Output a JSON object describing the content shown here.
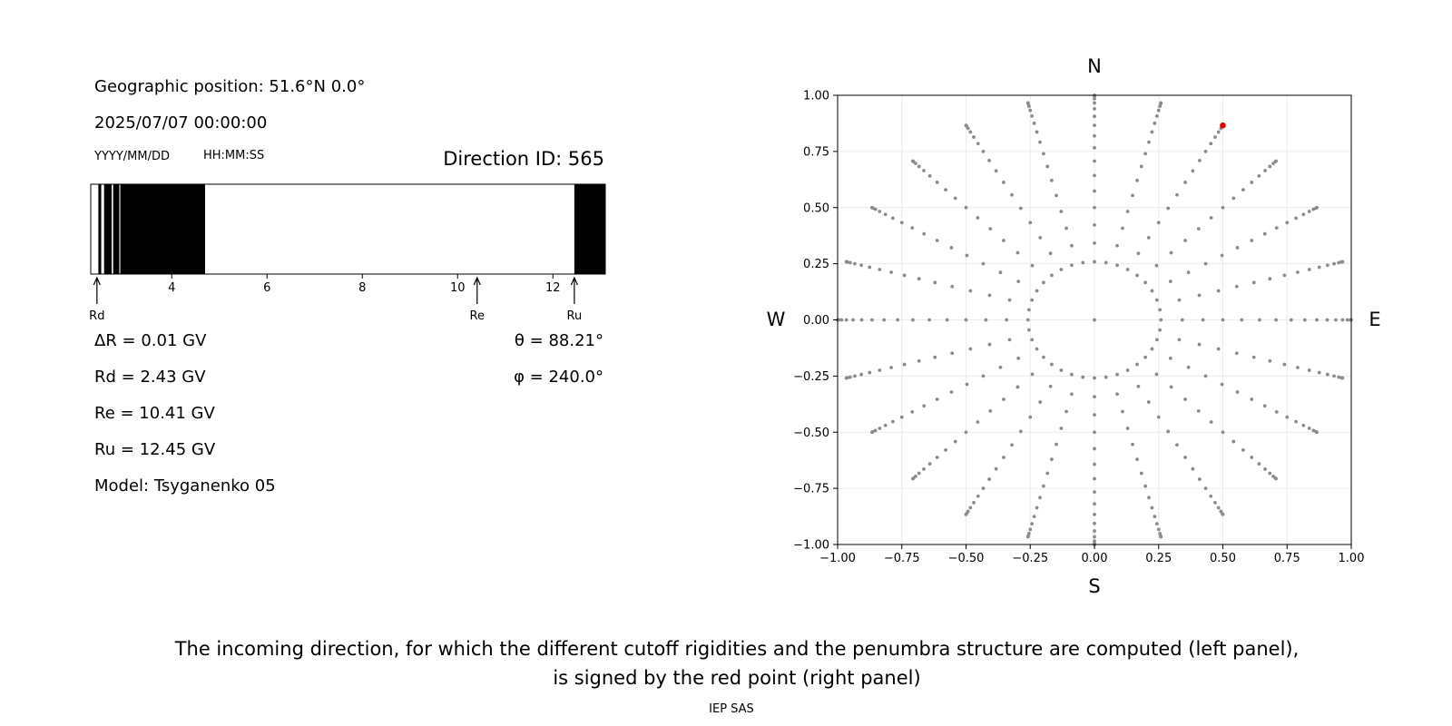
{
  "header": {
    "geo_position": "Geographic position: 51.6°N 0.0°",
    "datetime": "2025/07/07 00:00:00",
    "date_format": "YYYY/MM/DD",
    "time_format": "HH:MM:SS",
    "direction_id": "Direction ID: 565"
  },
  "results": {
    "delta_r": "ΔR = 0.01 GV",
    "rd": "Rd = 2.43 GV",
    "re": "Re = 10.41 GV",
    "ru": "Ru = 12.45 GV",
    "model": "Model: Tsyganenko 05",
    "theta": "θ = 88.21°",
    "phi": "φ = 240.0°"
  },
  "caption": {
    "line1": "The incoming direction, for which the different cutoff rigidities and the penumbra structure are computed (left panel),",
    "line2": "is signed by the red point (right panel)"
  },
  "footer": {
    "credit": "IEP SAS"
  },
  "colors": {
    "allowed": "#ffffff",
    "forbidden": "#000000",
    "grid_points": "#8c8c8c",
    "selected": "#e00000"
  },
  "chart_data": [
    {
      "type": "penumbra-bar",
      "xlim": [
        2.3,
        13.1
      ],
      "x_ticks": [
        "4",
        "6",
        "8",
        "10",
        "12"
      ],
      "x_tick_values": [
        4,
        6,
        8,
        10,
        12
      ],
      "markers": [
        {
          "label": "Rd",
          "value": 2.43
        },
        {
          "label": "Re",
          "value": 10.41
        },
        {
          "label": "Ru",
          "value": 12.45
        }
      ],
      "forbidden_intervals": [
        [
          2.46,
          2.52
        ],
        [
          2.58,
          2.74
        ],
        [
          2.77,
          2.9
        ],
        [
          2.92,
          4.7
        ],
        [
          12.45,
          13.1
        ]
      ]
    },
    {
      "type": "scatter",
      "xlim": [
        -1,
        1
      ],
      "ylim": [
        -1,
        1
      ],
      "x_ticks": [
        "−1.00",
        "−0.75",
        "−0.50",
        "−0.25",
        "0.00",
        "0.25",
        "0.50",
        "0.75",
        "1.00"
      ],
      "y_ticks": [
        "1.00",
        "0.75",
        "0.50",
        "0.25",
        "0.00",
        "−0.25",
        "−0.50",
        "−0.75",
        "−1.00"
      ],
      "tick_values": [
        -1,
        -0.75,
        -0.5,
        -0.25,
        0,
        0.25,
        0.5,
        0.75,
        1
      ],
      "compass": {
        "north": "N",
        "south": "S",
        "east": "E",
        "west": "W"
      },
      "grid": true,
      "directions_pattern": {
        "azimuth_step_deg": 15,
        "zenith_step_deg": 5,
        "zenith_max_deg": 90,
        "inner_ring_zenith_deg": 15,
        "inner_ring_step_deg": 10,
        "center_point": [
          0,
          0
        ]
      },
      "selected_point": {
        "x": 0.5,
        "y": 0.866
      }
    }
  ]
}
